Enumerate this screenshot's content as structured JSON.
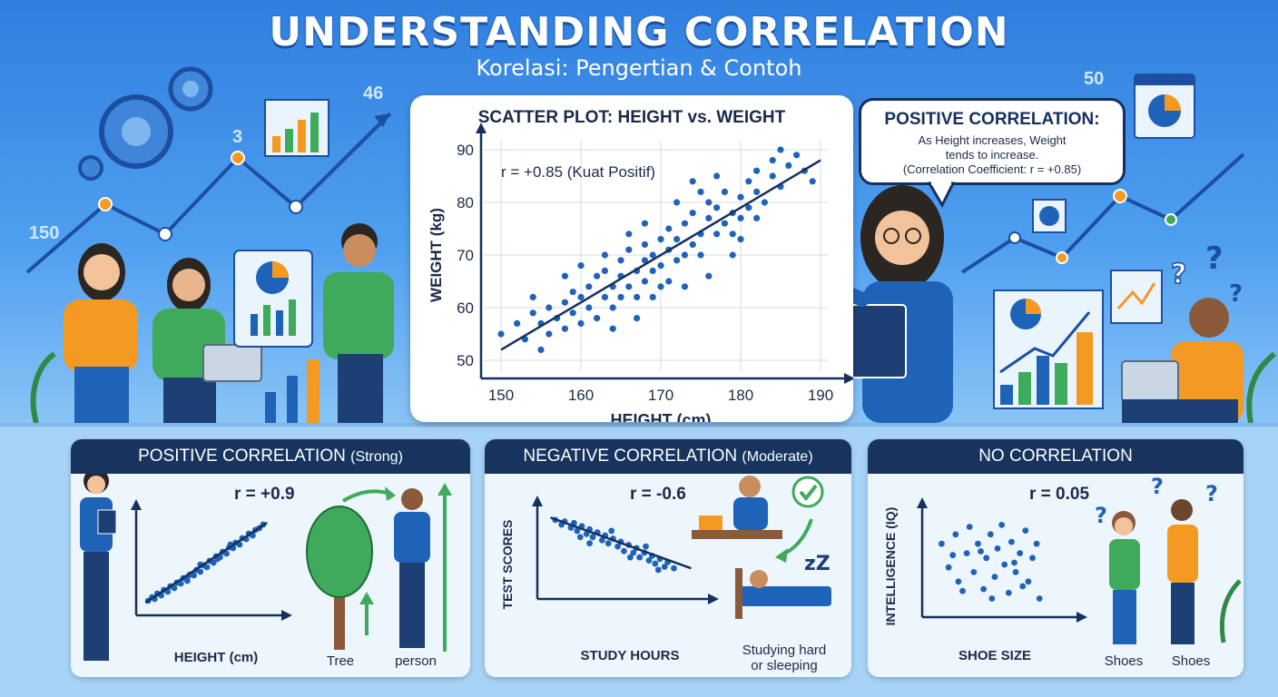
{
  "header": {
    "title": "UNDERSTANDING CORRELATION",
    "subtitle": "Korelasi: Pengertian & Contoh"
  },
  "decor_numbers": [
    "46",
    "3",
    "150",
    "50"
  ],
  "speech": {
    "title": "POSITIVE CORRELATION:",
    "body": "As Height increases, Weight\ntends to increase.\n(Correlation Coefficient: r = +0.85)"
  },
  "colors": {
    "navy": "#17345f",
    "point": "#1f63b8",
    "trend": "#16305e",
    "green": "#3faa5c",
    "orange": "#f49a23"
  },
  "chart_data": [
    {
      "type": "scatter",
      "title": "SCATTER PLOT: HEIGHT vs. WEIGHT",
      "xlabel": "HEIGHT (cm)",
      "ylabel": "WEIGHT (kg)",
      "xlim": [
        150,
        190
      ],
      "ylim": [
        50,
        90
      ],
      "xticks": [
        150,
        160,
        170,
        180,
        190
      ],
      "yticks": [
        50,
        60,
        70,
        80,
        90
      ],
      "grid": true,
      "annotation": "r = +0.85 (Kuat Positif)",
      "trendline": [
        [
          150,
          52
        ],
        [
          190,
          88
        ]
      ],
      "points": [
        [
          150,
          55
        ],
        [
          152,
          57
        ],
        [
          153,
          54
        ],
        [
          154,
          59
        ],
        [
          155,
          52
        ],
        [
          155,
          57
        ],
        [
          156,
          60
        ],
        [
          156,
          55
        ],
        [
          157,
          58
        ],
        [
          158,
          61
        ],
        [
          158,
          56
        ],
        [
          159,
          63
        ],
        [
          159,
          59
        ],
        [
          160,
          57
        ],
        [
          160,
          62
        ],
        [
          161,
          64
        ],
        [
          161,
          60
        ],
        [
          162,
          58
        ],
        [
          162,
          66
        ],
        [
          163,
          62
        ],
        [
          163,
          67
        ],
        [
          164,
          60
        ],
        [
          164,
          64
        ],
        [
          165,
          66
        ],
        [
          165,
          62
        ],
        [
          165,
          69
        ],
        [
          166,
          64
        ],
        [
          166,
          71
        ],
        [
          167,
          67
        ],
        [
          167,
          62
        ],
        [
          168,
          69
        ],
        [
          168,
          72
        ],
        [
          168,
          65
        ],
        [
          169,
          70
        ],
        [
          169,
          67
        ],
        [
          170,
          73
        ],
        [
          170,
          68
        ],
        [
          170,
          64
        ],
        [
          171,
          71
        ],
        [
          171,
          75
        ],
        [
          172,
          69
        ],
        [
          172,
          73
        ],
        [
          173,
          76
        ],
        [
          173,
          70
        ],
        [
          174,
          72
        ],
        [
          174,
          78
        ],
        [
          175,
          74
        ],
        [
          175,
          70
        ],
        [
          176,
          77
        ],
        [
          176,
          80
        ],
        [
          177,
          74
        ],
        [
          177,
          79
        ],
        [
          178,
          76
        ],
        [
          178,
          82
        ],
        [
          179,
          78
        ],
        [
          179,
          74
        ],
        [
          180,
          81
        ],
        [
          180,
          77
        ],
        [
          181,
          84
        ],
        [
          181,
          79
        ],
        [
          182,
          82
        ],
        [
          182,
          86
        ],
        [
          183,
          80
        ],
        [
          184,
          85
        ],
        [
          184,
          88
        ],
        [
          185,
          83
        ],
        [
          186,
          87
        ],
        [
          187,
          89
        ],
        [
          188,
          86
        ],
        [
          189,
          84
        ],
        [
          163,
          70
        ],
        [
          167,
          58
        ],
        [
          171,
          65
        ],
        [
          175,
          82
        ],
        [
          179,
          70
        ],
        [
          158,
          66
        ],
        [
          166,
          74
        ],
        [
          173,
          64
        ],
        [
          177,
          85
        ],
        [
          182,
          77
        ],
        [
          160,
          68
        ],
        [
          169,
          62
        ],
        [
          185,
          90
        ],
        [
          154,
          62
        ],
        [
          176,
          66
        ],
        [
          168,
          76
        ],
        [
          172,
          80
        ],
        [
          164,
          56
        ],
        [
          180,
          73
        ],
        [
          174,
          84
        ]
      ]
    },
    {
      "type": "scatter",
      "panel_title": "POSITIVE CORRELATION",
      "panel_qualifier": "(Strong)",
      "annotation": "r = +0.9",
      "xlabel": "HEIGHT (cm)",
      "points": [
        [
          0.05,
          0.08
        ],
        [
          0.08,
          0.12
        ],
        [
          0.1,
          0.1
        ],
        [
          0.12,
          0.16
        ],
        [
          0.15,
          0.14
        ],
        [
          0.17,
          0.2
        ],
        [
          0.2,
          0.18
        ],
        [
          0.22,
          0.24
        ],
        [
          0.25,
          0.22
        ],
        [
          0.27,
          0.28
        ],
        [
          0.3,
          0.27
        ],
        [
          0.32,
          0.33
        ],
        [
          0.35,
          0.3
        ],
        [
          0.37,
          0.37
        ],
        [
          0.4,
          0.36
        ],
        [
          0.42,
          0.42
        ],
        [
          0.45,
          0.4
        ],
        [
          0.47,
          0.47
        ],
        [
          0.5,
          0.45
        ],
        [
          0.52,
          0.52
        ],
        [
          0.55,
          0.5
        ],
        [
          0.57,
          0.57
        ],
        [
          0.6,
          0.56
        ],
        [
          0.62,
          0.62
        ],
        [
          0.65,
          0.6
        ],
        [
          0.67,
          0.67
        ],
        [
          0.7,
          0.66
        ],
        [
          0.72,
          0.72
        ],
        [
          0.75,
          0.7
        ],
        [
          0.77,
          0.77
        ],
        [
          0.8,
          0.76
        ],
        [
          0.82,
          0.82
        ],
        [
          0.85,
          0.8
        ],
        [
          0.87,
          0.86
        ],
        [
          0.9,
          0.88
        ],
        [
          0.93,
          0.92
        ],
        [
          0.45,
          0.48
        ],
        [
          0.58,
          0.54
        ],
        [
          0.68,
          0.7
        ],
        [
          0.35,
          0.34
        ]
      ],
      "trendline": [
        [
          0.03,
          0.06
        ],
        [
          0.96,
          0.94
        ]
      ]
    },
    {
      "type": "scatter",
      "panel_title": "NEGATIVE CORRELATION",
      "panel_qualifier": "(Moderate)",
      "annotation": "r = -0.6",
      "xlabel": "STUDY HOURS",
      "ylabel": "TEST SCORES",
      "points": [
        [
          0.08,
          0.92
        ],
        [
          0.12,
          0.86
        ],
        [
          0.14,
          0.9
        ],
        [
          0.18,
          0.82
        ],
        [
          0.2,
          0.88
        ],
        [
          0.22,
          0.78
        ],
        [
          0.25,
          0.84
        ],
        [
          0.28,
          0.74
        ],
        [
          0.3,
          0.8
        ],
        [
          0.32,
          0.7
        ],
        [
          0.35,
          0.76
        ],
        [
          0.38,
          0.66
        ],
        [
          0.4,
          0.72
        ],
        [
          0.42,
          0.62
        ],
        [
          0.45,
          0.68
        ],
        [
          0.48,
          0.58
        ],
        [
          0.5,
          0.64
        ],
        [
          0.52,
          0.52
        ],
        [
          0.55,
          0.6
        ],
        [
          0.58,
          0.5
        ],
        [
          0.6,
          0.56
        ],
        [
          0.62,
          0.44
        ],
        [
          0.65,
          0.5
        ],
        [
          0.68,
          0.4
        ],
        [
          0.7,
          0.46
        ],
        [
          0.72,
          0.36
        ],
        [
          0.75,
          0.42
        ],
        [
          0.78,
          0.32
        ],
        [
          0.8,
          0.38
        ],
        [
          0.84,
          0.3
        ],
        [
          0.3,
          0.62
        ],
        [
          0.44,
          0.78
        ],
        [
          0.56,
          0.44
        ],
        [
          0.66,
          0.58
        ],
        [
          0.74,
          0.28
        ],
        [
          0.24,
          0.7
        ]
      ],
      "trendline": [
        [
          0.05,
          0.95
        ],
        [
          0.95,
          0.3
        ]
      ]
    },
    {
      "type": "scatter",
      "panel_title": "NO CORRELATION",
      "annotation": "r = 0.05",
      "xlabel": "SHOE SIZE",
      "ylabel": "INTELLIGENCE (IQ)",
      "points": [
        [
          0.1,
          0.7
        ],
        [
          0.15,
          0.45
        ],
        [
          0.2,
          0.8
        ],
        [
          0.22,
          0.3
        ],
        [
          0.28,
          0.6
        ],
        [
          0.3,
          0.88
        ],
        [
          0.33,
          0.4
        ],
        [
          0.36,
          0.7
        ],
        [
          0.4,
          0.22
        ],
        [
          0.42,
          0.55
        ],
        [
          0.45,
          0.8
        ],
        [
          0.48,
          0.35
        ],
        [
          0.5,
          0.65
        ],
        [
          0.53,
          0.9
        ],
        [
          0.55,
          0.48
        ],
        [
          0.58,
          0.18
        ],
        [
          0.6,
          0.72
        ],
        [
          0.63,
          0.4
        ],
        [
          0.66,
          0.6
        ],
        [
          0.7,
          0.84
        ],
        [
          0.72,
          0.3
        ],
        [
          0.75,
          0.55
        ],
        [
          0.78,
          0.7
        ],
        [
          0.8,
          0.12
        ],
        [
          0.25,
          0.2
        ],
        [
          0.38,
          0.62
        ],
        [
          0.62,
          0.5
        ],
        [
          0.46,
          0.12
        ],
        [
          0.68,
          0.25
        ],
        [
          0.18,
          0.58
        ]
      ]
    }
  ],
  "panel_captions": {
    "positive_left": "Tree",
    "positive_right": "person",
    "negative": "Studying hard\nor sleeping",
    "none_left": "Shoes",
    "none_right": "Shoes"
  }
}
